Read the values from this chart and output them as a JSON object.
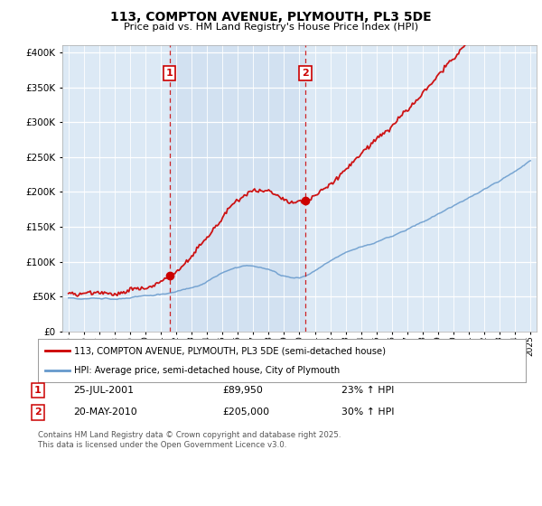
{
  "title": "113, COMPTON AVENUE, PLYMOUTH, PL3 5DE",
  "subtitle": "Price paid vs. HM Land Registry's House Price Index (HPI)",
  "background_color": "#ffffff",
  "plot_bg_color": "#dce9f5",
  "legend_label_red": "113, COMPTON AVENUE, PLYMOUTH, PL3 5DE (semi-detached house)",
  "legend_label_blue": "HPI: Average price, semi-detached house, City of Plymouth",
  "sale1_date": "25-JUL-2001",
  "sale1_price": "£89,950",
  "sale1_hpi": "23% ↑ HPI",
  "sale2_date": "20-MAY-2010",
  "sale2_price": "£205,000",
  "sale2_hpi": "30% ↑ HPI",
  "footnote": "Contains HM Land Registry data © Crown copyright and database right 2025.\nThis data is licensed under the Open Government Licence v3.0.",
  "ylim": [
    0,
    410000
  ],
  "yticks": [
    0,
    50000,
    100000,
    150000,
    200000,
    250000,
    300000,
    350000,
    400000
  ],
  "red_color": "#cc0000",
  "blue_color": "#6699cc",
  "vline_color": "#cc0000",
  "shade_color": "#ccdcef",
  "year_sale1": 2001.57,
  "year_sale2": 2010.38,
  "year_start": 1995,
  "year_end": 2025
}
